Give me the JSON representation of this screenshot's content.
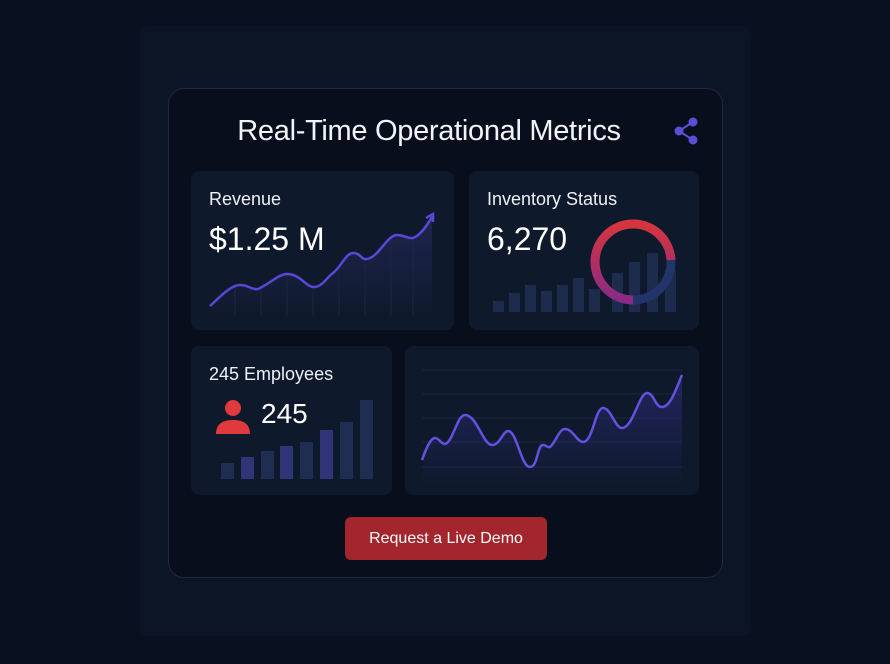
{
  "header": {
    "title": "Real-Time Operational Metrics",
    "share_icon": "share-icon"
  },
  "revenue": {
    "label": "Revenue",
    "value": "$1.25 M"
  },
  "inventory": {
    "label": "Inventory Status",
    "value": "6,270"
  },
  "employees": {
    "label": "245 Employees",
    "value": "245",
    "icon": "user-icon"
  },
  "cta": {
    "label": "Request a Live Demo"
  },
  "colors": {
    "accent": "#5b4fd6",
    "cta": "#a3262d",
    "donut_red": "#d7353d",
    "donut_blue": "#23346a"
  }
}
